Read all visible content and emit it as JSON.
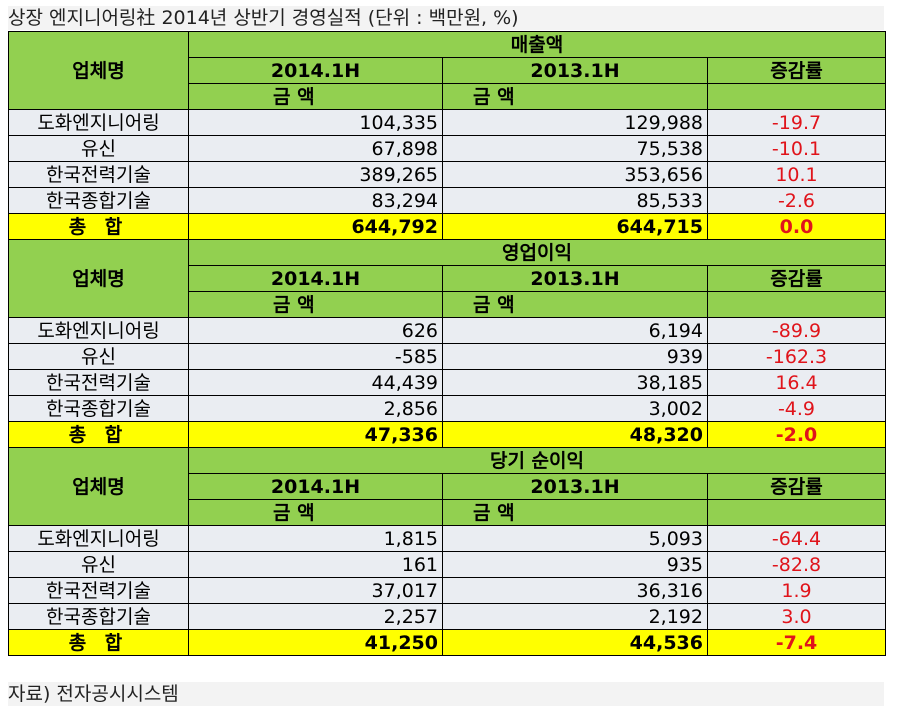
{
  "title": "상장 엔지니어링社 2014년 상반기 경영실적 (단위 : 백만원, %)",
  "footer": "자료) 전자공시시스템",
  "headers": {
    "company": "업체명",
    "col_2014": "2014.1H",
    "col_2013": "2013.1H",
    "change": "증감률",
    "amount": "금 액"
  },
  "sections": [
    {
      "title": "매출액",
      "rows": [
        {
          "name": "도화엔지니어링",
          "v2014": "104,335",
          "v2013": "129,988",
          "rate": "-19.7"
        },
        {
          "name": "유신",
          "v2014": "67,898",
          "v2013": "75,538",
          "rate": "-10.1"
        },
        {
          "name": "한국전력기술",
          "v2014": "389,265",
          "v2013": "353,656",
          "rate": "10.1"
        },
        {
          "name": "한국종합기술",
          "v2014": "83,294",
          "v2013": "85,533",
          "rate": "-2.6"
        }
      ],
      "total": {
        "name": "총 합",
        "v2014": "644,792",
        "v2013": "644,715",
        "rate": "0.0"
      }
    },
    {
      "title": "영업이익",
      "rows": [
        {
          "name": "도화엔지니어링",
          "v2014": "626",
          "v2013": "6,194",
          "rate": "-89.9"
        },
        {
          "name": "유신",
          "v2014": "-585",
          "v2013": "939",
          "rate": "-162.3"
        },
        {
          "name": "한국전력기술",
          "v2014": "44,439",
          "v2013": "38,185",
          "rate": "16.4"
        },
        {
          "name": "한국종합기술",
          "v2014": "2,856",
          "v2013": "3,002",
          "rate": "-4.9"
        }
      ],
      "total": {
        "name": "총 합",
        "v2014": "47,336",
        "v2013": "48,320",
        "rate": "-2.0"
      }
    },
    {
      "title": "당기 순이익",
      "rows": [
        {
          "name": "도화엔지니어링",
          "v2014": "1,815",
          "v2013": "5,093",
          "rate": "-64.4"
        },
        {
          "name": "유신",
          "v2014": "161",
          "v2013": "935",
          "rate": "-82.8"
        },
        {
          "name": "한국전력기술",
          "v2014": "37,017",
          "v2013": "36,316",
          "rate": "1.9"
        },
        {
          "name": "한국종합기술",
          "v2014": "2,257",
          "v2013": "2,192",
          "rate": "3.0"
        }
      ],
      "total": {
        "name": "총 합",
        "v2014": "41,250",
        "v2013": "44,536",
        "rate": "-7.4"
      }
    }
  ]
}
